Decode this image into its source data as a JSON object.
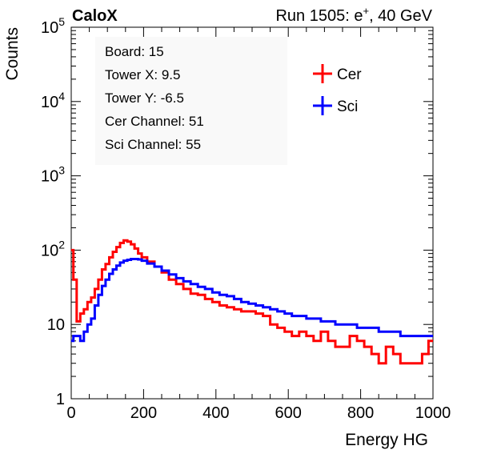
{
  "header": {
    "experiment": "CaloX",
    "run_label": "Run 1505: e",
    "run_sup": "+",
    "run_tail": ", 40 GeV"
  },
  "info_box": {
    "lines": [
      "Board: 15",
      "Tower X: 9.5",
      "Tower Y: -6.5",
      "Cer Channel: 51",
      "Sci Channel: 55"
    ]
  },
  "chart_data": {
    "type": "line",
    "title": "",
    "xlabel": "Energy HG",
    "ylabel": "Counts",
    "xlim": [
      0,
      1000
    ],
    "ylim": [
      1,
      100000
    ],
    "log_y": true,
    "grid": false,
    "legend_position": "top-right",
    "x_ticks": [
      0,
      200,
      400,
      600,
      800,
      1000
    ],
    "y_ticks": [
      {
        "value": 1,
        "base": "1",
        "exp": ""
      },
      {
        "value": 10,
        "base": "10",
        "exp": ""
      },
      {
        "value": 100,
        "base": "10",
        "exp": "2"
      },
      {
        "value": 1000,
        "base": "10",
        "exp": "3"
      },
      {
        "value": 10000,
        "base": "10",
        "exp": "4"
      },
      {
        "value": 100000,
        "base": "10",
        "exp": "5"
      }
    ],
    "series": [
      {
        "name": "Cer",
        "color": "#ff0000",
        "x": [
          2,
          10,
          20,
          30,
          40,
          50,
          60,
          70,
          80,
          90,
          100,
          110,
          120,
          130,
          140,
          150,
          160,
          170,
          180,
          190,
          200,
          220,
          240,
          260,
          280,
          300,
          320,
          340,
          360,
          380,
          400,
          420,
          440,
          460,
          480,
          500,
          520,
          540,
          560,
          580,
          600,
          620,
          640,
          660,
          680,
          700,
          720,
          740,
          760,
          780,
          800,
          820,
          840,
          860,
          880,
          900,
          920,
          940,
          960,
          980,
          995
        ],
        "values": [
          100,
          40,
          11,
          14,
          16,
          20,
          23,
          30,
          40,
          55,
          65,
          80,
          95,
          110,
          125,
          135,
          130,
          120,
          105,
          90,
          80,
          70,
          60,
          50,
          40,
          35,
          30,
          26,
          25,
          22,
          20,
          18,
          17,
          16,
          15,
          15,
          14,
          13,
          10,
          9,
          8,
          7,
          8,
          7,
          6,
          8,
          6,
          5,
          5,
          7,
          6,
          5,
          4,
          3,
          5,
          4,
          3,
          3,
          3,
          4,
          6
        ]
      },
      {
        "name": "Sci",
        "color": "#0000ff",
        "x": [
          2,
          10,
          20,
          30,
          40,
          50,
          60,
          70,
          80,
          90,
          100,
          110,
          120,
          130,
          140,
          150,
          160,
          170,
          180,
          190,
          200,
          220,
          240,
          260,
          280,
          300,
          320,
          340,
          360,
          380,
          400,
          420,
          440,
          460,
          480,
          500,
          520,
          540,
          560,
          580,
          600,
          620,
          640,
          660,
          680,
          700,
          720,
          740,
          760,
          780,
          800,
          820,
          840,
          860,
          880,
          900,
          920,
          940,
          960,
          980,
          995
        ],
        "values": [
          6,
          7,
          7,
          6,
          8,
          10,
          12,
          18,
          25,
          33,
          40,
          48,
          55,
          62,
          68,
          72,
          74,
          76,
          76,
          75,
          72,
          66,
          60,
          53,
          47,
          42,
          38,
          35,
          32,
          30,
          27,
          25,
          24,
          22,
          20,
          19,
          18,
          17,
          16,
          15,
          14,
          13,
          13,
          12,
          12,
          11,
          11,
          10,
          10,
          10,
          9,
          9,
          9,
          8,
          8,
          8,
          7,
          7,
          7,
          7,
          7
        ]
      }
    ]
  }
}
